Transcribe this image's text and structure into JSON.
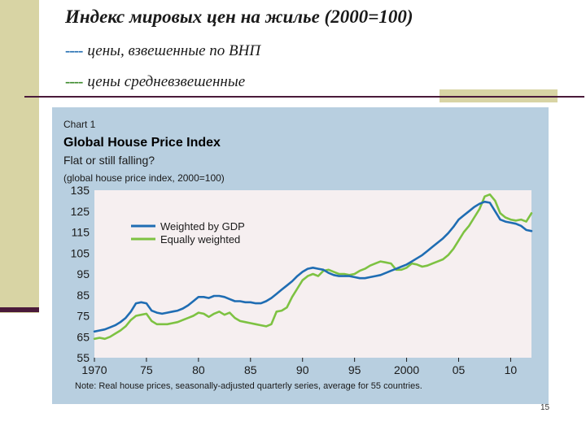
{
  "slide": {
    "title": "Индекс мировых цен на жилье (2000=100)",
    "legend_gdp_dash": "----",
    "legend_gdp_text": "цены, взвешенные по ВНП",
    "legend_equal_dash": "----",
    "legend_equal_text": "цены средневзвешенные",
    "page_number": "15",
    "colors": {
      "gdp_dash": "#1e6bb0",
      "equal_dash": "#3a8a2a"
    }
  },
  "chart": {
    "label": "Chart 1",
    "title": "Global House Price Index",
    "subtitle": "Flat or still falling?",
    "units": "(global house price index, 2000=100)",
    "note": "Note: Real house prices, seasonally-adjusted quarterly series, average for 55 countries."
  },
  "chart_data": {
    "type": "line",
    "xlim": [
      1970,
      2012
    ],
    "ylim": [
      55,
      135
    ],
    "x_ticks": [
      1970,
      1975,
      1980,
      1985,
      1990,
      1995,
      2000,
      2005,
      2010
    ],
    "x_tick_labels": [
      "1970",
      "75",
      "80",
      "85",
      "90",
      "95",
      "2000",
      "05",
      "10"
    ],
    "y_ticks": [
      55,
      65,
      75,
      85,
      95,
      105,
      115,
      125,
      135
    ],
    "grid": false,
    "legend_position": "top-left",
    "series": [
      {
        "name": "Weighted by GDP",
        "color": "#1f6db3",
        "x": [
          1970,
          1970.5,
          1971,
          1971.5,
          1972,
          1972.5,
          1973,
          1973.5,
          1974,
          1974.5,
          1975,
          1975.5,
          1976,
          1976.5,
          1977,
          1977.5,
          1978,
          1978.5,
          1979,
          1979.5,
          1980,
          1980.5,
          1981,
          1981.5,
          1982,
          1982.5,
          1983,
          1983.5,
          1984,
          1984.5,
          1985,
          1985.5,
          1986,
          1986.5,
          1987,
          1987.5,
          1988,
          1988.5,
          1989,
          1989.5,
          1990,
          1990.5,
          1991,
          1991.5,
          1992,
          1992.5,
          1993,
          1993.5,
          1994,
          1994.5,
          1995,
          1995.5,
          1996,
          1996.5,
          1997,
          1997.5,
          1998,
          1998.5,
          1999,
          1999.5,
          2000,
          2000.5,
          2001,
          2001.5,
          2002,
          2002.5,
          2003,
          2003.5,
          2004,
          2004.5,
          2005,
          2005.5,
          2006,
          2006.5,
          2007,
          2007.5,
          2008,
          2008.5,
          2009,
          2009.5,
          2010,
          2010.5,
          2011,
          2011.5,
          2012
        ],
        "values": [
          67.5,
          68,
          68.5,
          69.5,
          70.5,
          72,
          74,
          77,
          81,
          81.5,
          81,
          77.5,
          76.5,
          76,
          76.5,
          77,
          77.5,
          78.5,
          80,
          82,
          84,
          84,
          83.5,
          84.5,
          84.5,
          84,
          83,
          82,
          82,
          81.5,
          81.5,
          81,
          81,
          82,
          83.5,
          85.5,
          87.5,
          89.5,
          91.5,
          94,
          96,
          97.5,
          98,
          97.5,
          97,
          95.5,
          94.5,
          94,
          94,
          94,
          93.5,
          93,
          93,
          93.5,
          94,
          94.5,
          95.5,
          96.5,
          97.5,
          98.5,
          99.5,
          101,
          102.5,
          104,
          106,
          108,
          110,
          112,
          114.5,
          117.5,
          121,
          123,
          125,
          127,
          128.5,
          129.5,
          129,
          125,
          121,
          120,
          119.5,
          119,
          118,
          116,
          115.5
        ]
      },
      {
        "name": "Equally weighted",
        "color": "#7dc242",
        "x": [
          1970,
          1970.5,
          1971,
          1971.5,
          1972,
          1972.5,
          1973,
          1973.5,
          1974,
          1974.5,
          1975,
          1975.5,
          1976,
          1976.5,
          1977,
          1977.5,
          1978,
          1978.5,
          1979,
          1979.5,
          1980,
          1980.5,
          1981,
          1981.5,
          1982,
          1982.5,
          1983,
          1983.5,
          1984,
          1984.5,
          1985,
          1985.5,
          1986,
          1986.5,
          1987,
          1987.5,
          1988,
          1988.5,
          1989,
          1989.5,
          1990,
          1990.5,
          1991,
          1991.5,
          1992,
          1992.5,
          1993,
          1993.5,
          1994,
          1994.5,
          1995,
          1995.5,
          1996,
          1996.5,
          1997,
          1997.5,
          1998,
          1998.5,
          1999,
          1999.5,
          2000,
          2000.5,
          2001,
          2001.5,
          2002,
          2002.5,
          2003,
          2003.5,
          2004,
          2004.5,
          2005,
          2005.5,
          2006,
          2006.5,
          2007,
          2007.5,
          2008,
          2008.5,
          2009,
          2009.5,
          2010,
          2010.5,
          2011,
          2011.5,
          2012
        ],
        "values": [
          64,
          64.5,
          64,
          65,
          66.5,
          68,
          70,
          73,
          75,
          75.5,
          76,
          72.5,
          71,
          71,
          71,
          71.5,
          72,
          73,
          74,
          75,
          76.5,
          76,
          74.5,
          76,
          77,
          75.5,
          76.5,
          74,
          72.5,
          72,
          71.5,
          71,
          70.5,
          70,
          71,
          77,
          77.5,
          79,
          84,
          88,
          92,
          94,
          95,
          94,
          96.5,
          97,
          96,
          95,
          95,
          94.5,
          95,
          96.5,
          97.5,
          99,
          100,
          101,
          100.5,
          100,
          97,
          97,
          98,
          100,
          99.5,
          98.5,
          99,
          100,
          101,
          102,
          104,
          107,
          111,
          115,
          118,
          122,
          126,
          132,
          133,
          130,
          124,
          122,
          121,
          120.5,
          121,
          120,
          124
        ]
      }
    ]
  }
}
